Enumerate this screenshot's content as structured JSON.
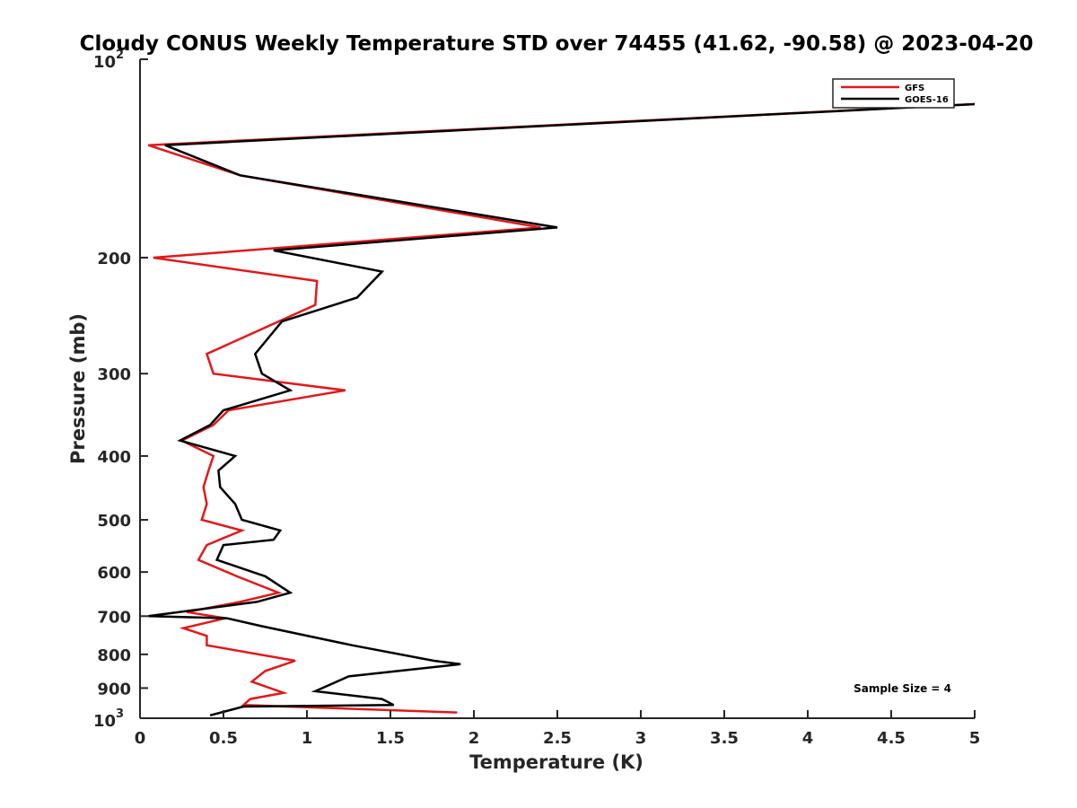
{
  "chart_data": {
    "type": "line",
    "title": "Cloudy CONUS Weekly Temperature STD over 74455 (41.62, -90.58) @ 2023-04-20",
    "xlabel": "Temperature (K)",
    "ylabel": "Pressure (mb)",
    "xlim": [
      0,
      5
    ],
    "ylim": [
      100,
      1000
    ],
    "y_scale": "log",
    "y_reversed": true,
    "grid": false,
    "legend_position": "top-right",
    "x_ticks": [
      "0",
      "0.5",
      "1",
      "1.5",
      "2",
      "2.5",
      "3",
      "3.5",
      "4",
      "4.5",
      "5"
    ],
    "x_tick_values": [
      0,
      0.5,
      1,
      1.5,
      2,
      2.5,
      3,
      3.5,
      4,
      4.5,
      5
    ],
    "y_ticks": [
      {
        "value": 100,
        "base": "10",
        "exp": "2"
      },
      {
        "value": 200,
        "label": "200"
      },
      {
        "value": 300,
        "label": "300"
      },
      {
        "value": 400,
        "label": "400"
      },
      {
        "value": 500,
        "label": "500"
      },
      {
        "value": 600,
        "label": "600"
      },
      {
        "value": 700,
        "label": "700"
      },
      {
        "value": 800,
        "label": "800"
      },
      {
        "value": 900,
        "label": "900"
      },
      {
        "value": 1000,
        "base": "10",
        "exp": "3"
      }
    ],
    "annotation": "Sample Size = 4",
    "series": [
      {
        "name": "GFS",
        "color": "#e0191b",
        "points": [
          [
            5.0,
            117
          ],
          [
            0.05,
            135
          ],
          [
            0.6,
            150
          ],
          [
            2.4,
            180
          ],
          [
            0.08,
            200
          ],
          [
            1.06,
            217
          ],
          [
            1.05,
            236
          ],
          [
            0.4,
            280
          ],
          [
            0.44,
            300
          ],
          [
            1.23,
            318
          ],
          [
            0.53,
            341
          ],
          [
            0.44,
            359
          ],
          [
            0.25,
            379
          ],
          [
            0.44,
            400
          ],
          [
            0.41,
            421
          ],
          [
            0.38,
            446
          ],
          [
            0.4,
            473
          ],
          [
            0.37,
            500
          ],
          [
            0.61,
            519
          ],
          [
            0.4,
            546
          ],
          [
            0.35,
            575
          ],
          [
            0.58,
            609
          ],
          [
            0.83,
            645
          ],
          [
            0.6,
            666
          ],
          [
            0.28,
            690
          ],
          [
            0.51,
            705
          ],
          [
            0.26,
            730
          ],
          [
            0.4,
            750
          ],
          [
            0.4,
            775
          ],
          [
            0.93,
            818
          ],
          [
            0.75,
            848
          ],
          [
            0.67,
            880
          ],
          [
            0.86,
            915
          ],
          [
            0.66,
            935
          ],
          [
            0.62,
            955
          ],
          [
            1.9,
            980
          ]
        ]
      },
      {
        "name": "GOES-16",
        "color": "#000000",
        "points": [
          [
            5.0,
            117
          ],
          [
            0.15,
            135
          ],
          [
            0.6,
            150
          ],
          [
            2.5,
            180
          ],
          [
            0.8,
            195
          ],
          [
            1.45,
            210
          ],
          [
            1.3,
            230
          ],
          [
            0.85,
            250
          ],
          [
            0.69,
            280
          ],
          [
            0.73,
            300
          ],
          [
            0.9,
            318
          ],
          [
            0.5,
            341
          ],
          [
            0.42,
            359
          ],
          [
            0.24,
            379
          ],
          [
            0.57,
            400
          ],
          [
            0.47,
            421
          ],
          [
            0.48,
            446
          ],
          [
            0.57,
            473
          ],
          [
            0.61,
            500
          ],
          [
            0.84,
            519
          ],
          [
            0.8,
            536
          ],
          [
            0.5,
            546
          ],
          [
            0.46,
            575
          ],
          [
            0.75,
            609
          ],
          [
            0.9,
            645
          ],
          [
            0.7,
            666
          ],
          [
            0.05,
            700
          ],
          [
            0.52,
            705
          ],
          [
            0.73,
            725
          ],
          [
            1.27,
            775
          ],
          [
            1.76,
            818
          ],
          [
            1.92,
            828
          ],
          [
            1.25,
            864
          ],
          [
            1.05,
            910
          ],
          [
            1.45,
            935
          ],
          [
            1.52,
            955
          ],
          [
            0.62,
            960
          ],
          [
            0.42,
            990
          ]
        ]
      }
    ]
  }
}
